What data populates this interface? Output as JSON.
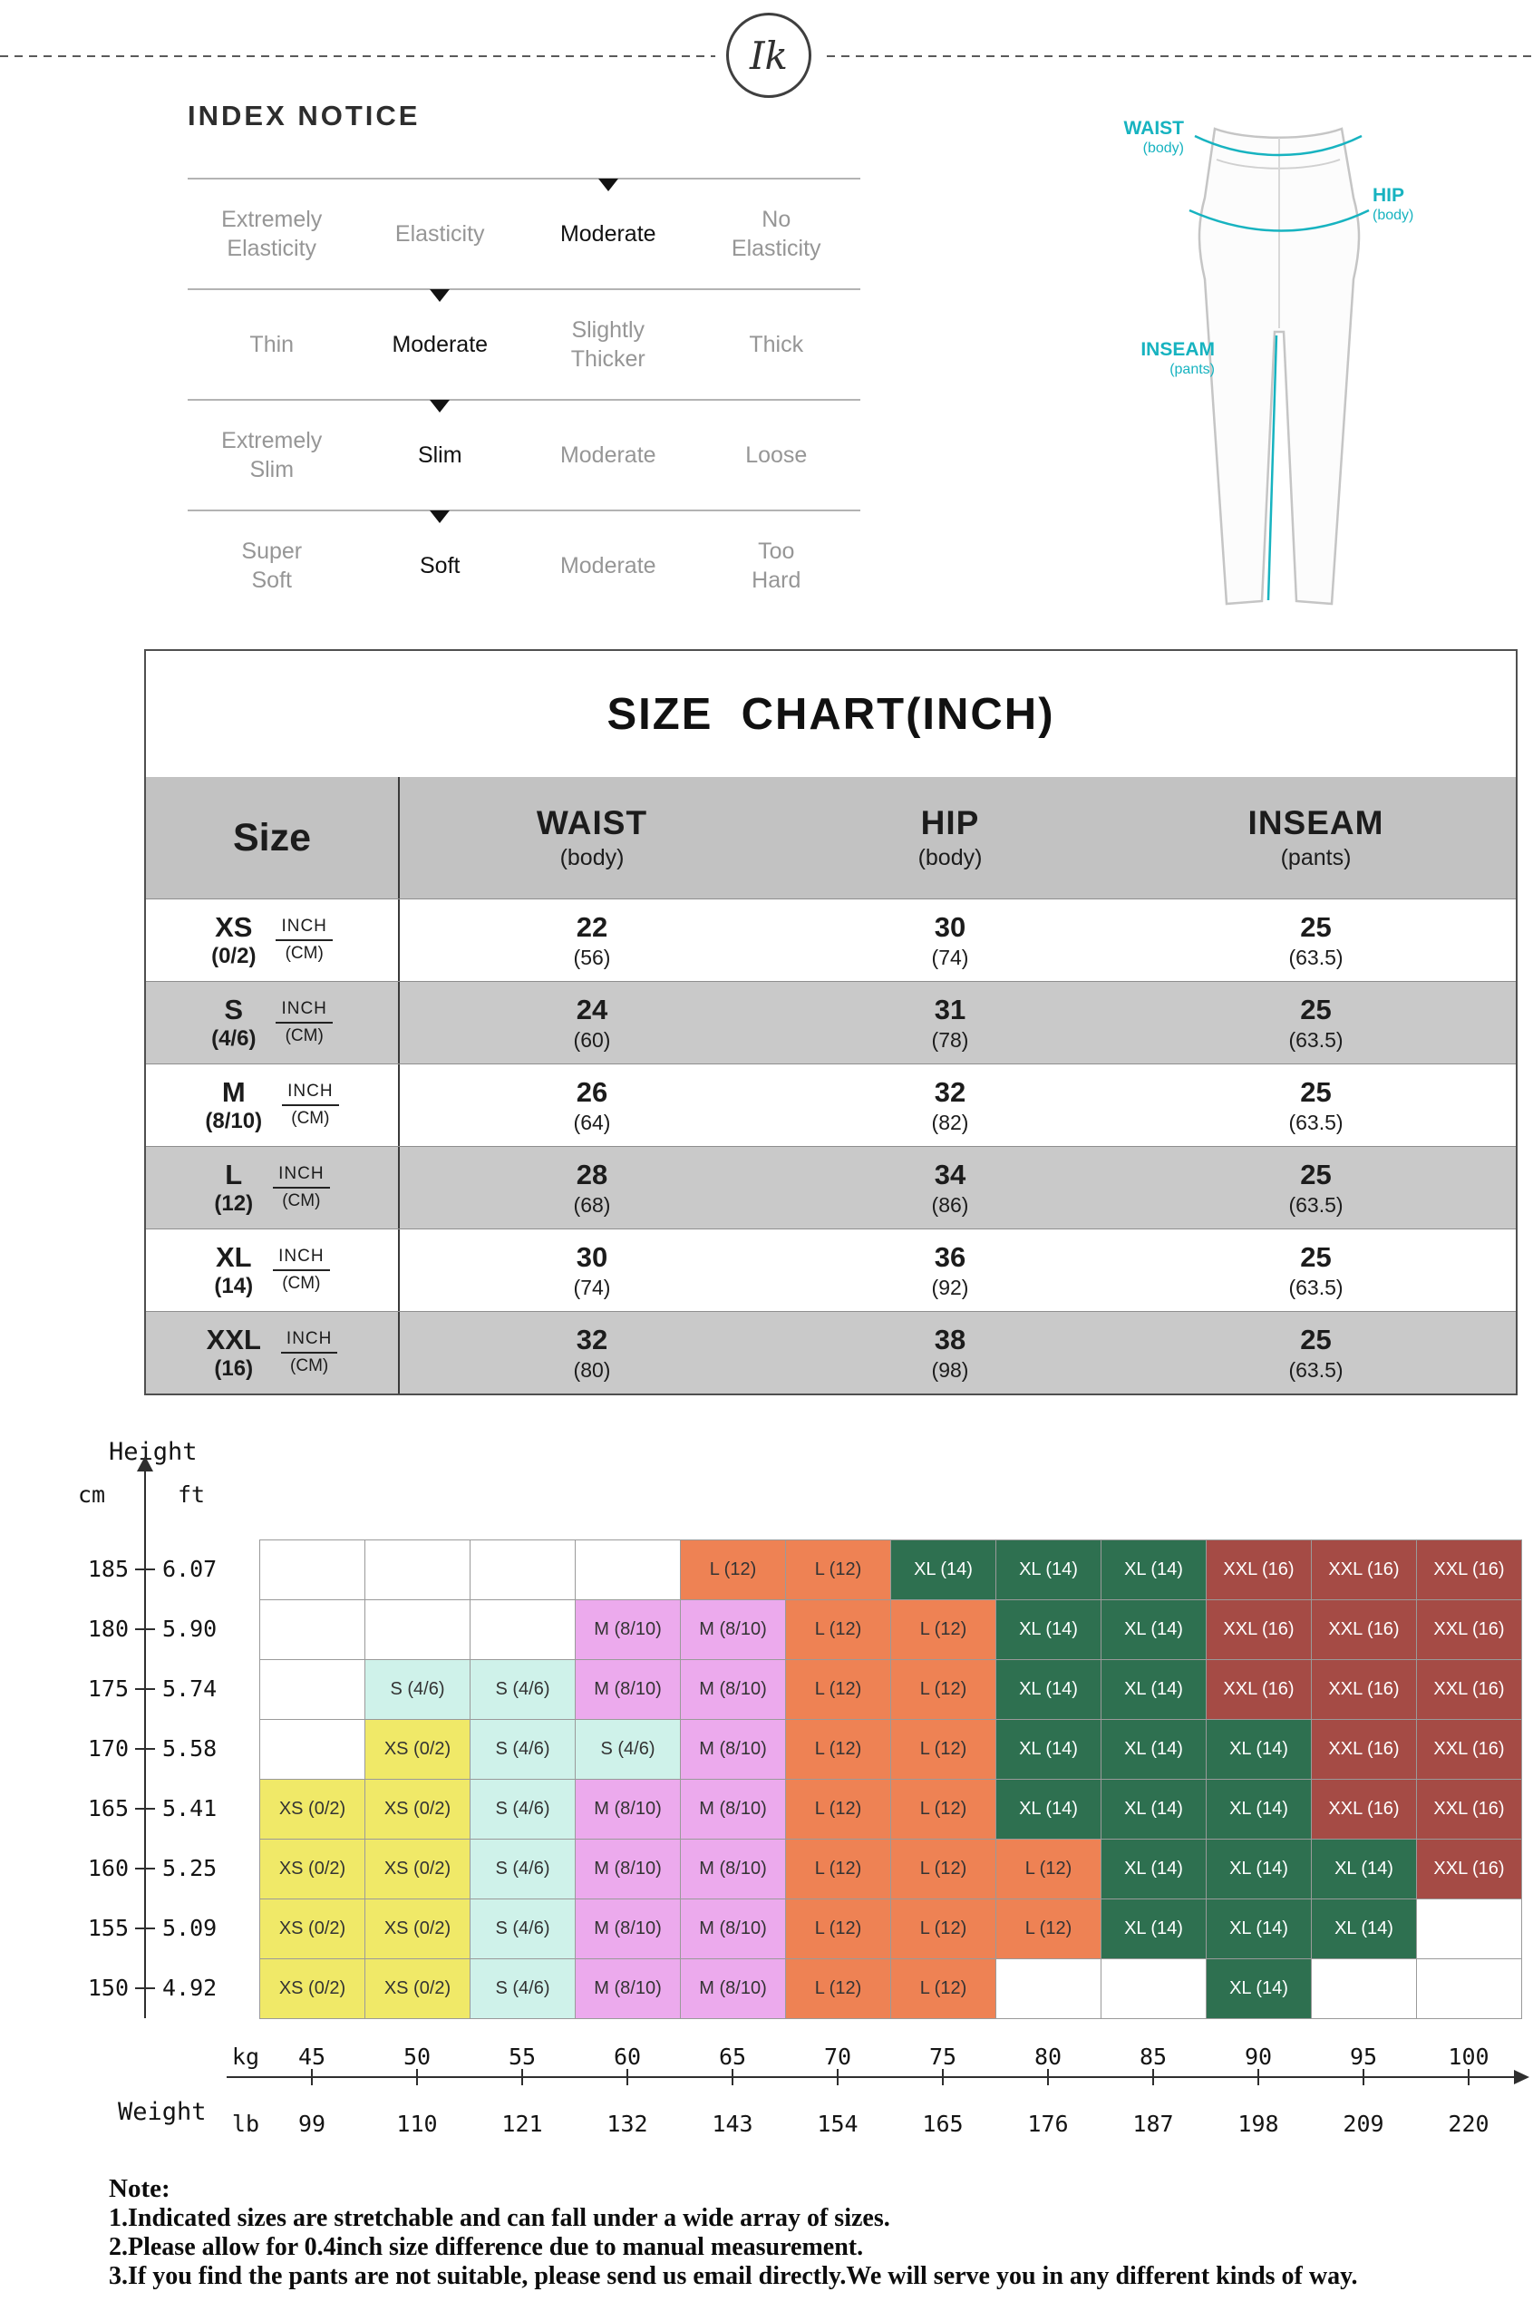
{
  "logo": {
    "monogram": "Ik"
  },
  "index_notice": {
    "title": "INDEX NOTICE",
    "rows": [
      {
        "name": "elasticity",
        "selected": 2,
        "options": [
          [
            "Extremely",
            "Elasticity"
          ],
          [
            "Elasticity"
          ],
          [
            "Moderate"
          ],
          [
            "No",
            "Elasticity"
          ]
        ]
      },
      {
        "name": "thickness",
        "selected": 1,
        "options": [
          [
            "Thin"
          ],
          [
            "Moderate"
          ],
          [
            "Slightly",
            "Thicker"
          ],
          [
            "Thick"
          ]
        ]
      },
      {
        "name": "fit",
        "selected": 1,
        "options": [
          [
            "Extremely",
            "Slim"
          ],
          [
            "Slim"
          ],
          [
            "Moderate"
          ],
          [
            "Loose"
          ]
        ]
      },
      {
        "name": "softness",
        "selected": 1,
        "options": [
          [
            "Super",
            "Soft"
          ],
          [
            "Soft"
          ],
          [
            "Moderate"
          ],
          [
            "Too",
            "Hard"
          ]
        ]
      }
    ]
  },
  "diagram": {
    "accent_color": "#17b3c0",
    "waist": {
      "title": "WAIST",
      "sub": "(body)"
    },
    "hip": {
      "title": "HIP",
      "sub": "(body)"
    },
    "inseam": {
      "title": "INSEAM",
      "sub": "(pants)"
    }
  },
  "size_chart": {
    "title": "SIZE  CHART(INCH)",
    "header": {
      "size": "Size",
      "columns": [
        {
          "title": "WAIST",
          "sub": "(body)"
        },
        {
          "title": "HIP",
          "sub": "(body)"
        },
        {
          "title": "INSEAM",
          "sub": "(pants)"
        }
      ]
    },
    "unit_top": "INCH",
    "unit_bottom": "(CM)",
    "rows": [
      {
        "size": "XS",
        "size_sub": "(0/2)",
        "values": [
          [
            "22",
            "(56)"
          ],
          [
            "30",
            "(74)"
          ],
          [
            "25",
            "(63.5)"
          ]
        ]
      },
      {
        "size": "S",
        "size_sub": "(4/6)",
        "values": [
          [
            "24",
            "(60)"
          ],
          [
            "31",
            "(78)"
          ],
          [
            "25",
            "(63.5)"
          ]
        ]
      },
      {
        "size": "M",
        "size_sub": "(8/10)",
        "values": [
          [
            "26",
            "(64)"
          ],
          [
            "32",
            "(82)"
          ],
          [
            "25",
            "(63.5)"
          ]
        ]
      },
      {
        "size": "L",
        "size_sub": "(12)",
        "values": [
          [
            "28",
            "(68)"
          ],
          [
            "34",
            "(86)"
          ],
          [
            "25",
            "(63.5)"
          ]
        ]
      },
      {
        "size": "XL",
        "size_sub": "(14)",
        "values": [
          [
            "30",
            "(74)"
          ],
          [
            "36",
            "(92)"
          ],
          [
            "25",
            "(63.5)"
          ]
        ]
      },
      {
        "size": "XXL",
        "size_sub": "(16)",
        "values": [
          [
            "32",
            "(80)"
          ],
          [
            "38",
            "(98)"
          ],
          [
            "25",
            "(63.5)"
          ]
        ]
      }
    ]
  },
  "height_weight": {
    "height_label": "Height",
    "weight_label": "Weight",
    "cm_label": "cm",
    "ft_label": "ft",
    "kg_label": "kg",
    "lb_label": "lb",
    "legend": {
      "XS": {
        "label": "XS (0/2)",
        "bg": "#f0e968",
        "fg": "#333333"
      },
      "S": {
        "label": "S (4/6)",
        "bg": "#cff2ea",
        "fg": "#333333"
      },
      "M": {
        "label": "M (8/10)",
        "bg": "#ecaaed",
        "fg": "#333333"
      },
      "L": {
        "label": "L (12)",
        "bg": "#ee8254",
        "fg": "#333333"
      },
      "XL": {
        "label": "XL (14)",
        "bg": "#2e7050",
        "fg": "#ffffff"
      },
      "XXL": {
        "label": "XXL (16)",
        "bg": "#a54b45",
        "fg": "#ffffff"
      }
    },
    "rows": [
      {
        "cm": "185",
        "ft": "6.07",
        "cells": [
          "",
          "",
          "",
          "",
          "L",
          "L",
          "XL",
          "XL",
          "XL",
          "XXL",
          "XXL",
          "XXL"
        ]
      },
      {
        "cm": "180",
        "ft": "5.90",
        "cells": [
          "",
          "",
          "",
          "M",
          "M",
          "L",
          "L",
          "XL",
          "XL",
          "XXL",
          "XXL",
          "XXL"
        ]
      },
      {
        "cm": "175",
        "ft": "5.74",
        "cells": [
          "",
          "S",
          "S",
          "M",
          "M",
          "L",
          "L",
          "XL",
          "XL",
          "XXL",
          "XXL",
          "XXL"
        ]
      },
      {
        "cm": "170",
        "ft": "5.58",
        "cells": [
          "",
          "XS",
          "S",
          "S",
          "M",
          "L",
          "L",
          "XL",
          "XL",
          "XL",
          "XXL",
          "XXL"
        ]
      },
      {
        "cm": "165",
        "ft": "5.41",
        "cells": [
          "XS",
          "XS",
          "S",
          "M",
          "M",
          "L",
          "L",
          "XL",
          "XL",
          "XL",
          "XXL",
          "XXL"
        ]
      },
      {
        "cm": "160",
        "ft": "5.25",
        "cells": [
          "XS",
          "XS",
          "S",
          "M",
          "M",
          "L",
          "L",
          "L",
          "XL",
          "XL",
          "XL",
          "XXL"
        ]
      },
      {
        "cm": "155",
        "ft": "5.09",
        "cells": [
          "XS",
          "XS",
          "S",
          "M",
          "M",
          "L",
          "L",
          "L",
          "XL",
          "XL",
          "XL",
          ""
        ]
      },
      {
        "cm": "150",
        "ft": "4.92",
        "cells": [
          "XS",
          "XS",
          "S",
          "M",
          "M",
          "L",
          "L",
          "",
          "",
          "XL",
          "",
          ""
        ]
      }
    ],
    "kg_values": [
      "45",
      "50",
      "55",
      "60",
      "65",
      "70",
      "75",
      "80",
      "85",
      "90",
      "95",
      "100"
    ],
    "lb_values": [
      "99",
      "110",
      "121",
      "132",
      "143",
      "154",
      "165",
      "176",
      "187",
      "198",
      "209",
      "220"
    ]
  },
  "note": {
    "title": "Note:",
    "items": [
      "1.Indicated sizes are stretchable and can fall under a wide array of sizes.",
      "2.Please allow for 0.4inch size difference due to manual measurement.",
      "3.If you find the pants are not suitable, please send us email directly.We will serve you in any different kinds of way."
    ]
  },
  "chart_data": [
    {
      "type": "table",
      "title": "SIZE CHART(INCH)",
      "columns": [
        "Size",
        "WAIST (body)",
        "HIP (body)",
        "INSEAM (pants)"
      ],
      "units": "inch (cm)",
      "rows": [
        [
          "XS (0/2)",
          "22 (56)",
          "30 (74)",
          "25 (63.5)"
        ],
        [
          "S (4/6)",
          "24 (60)",
          "31 (78)",
          "25 (63.5)"
        ],
        [
          "M (8/10)",
          "26 (64)",
          "32 (82)",
          "25 (63.5)"
        ],
        [
          "L (12)",
          "28 (68)",
          "34 (86)",
          "25 (63.5)"
        ],
        [
          "XL (14)",
          "30 (74)",
          "36 (92)",
          "25 (63.5)"
        ],
        [
          "XXL (16)",
          "32 (80)",
          "38 (98)",
          "25 (63.5)"
        ]
      ]
    },
    {
      "type": "heatmap",
      "title": "Recommended size by height and weight",
      "xlabel": "Weight",
      "ylabel": "Height",
      "x_kg": [
        45,
        50,
        55,
        60,
        65,
        70,
        75,
        80,
        85,
        90,
        95,
        100
      ],
      "x_lb": [
        99,
        110,
        121,
        132,
        143,
        154,
        165,
        176,
        187,
        198,
        209,
        220
      ],
      "y_cm": [
        185,
        180,
        175,
        170,
        165,
        160,
        155,
        150
      ],
      "y_ft": [
        6.07,
        5.9,
        5.74,
        5.58,
        5.41,
        5.25,
        5.09,
        4.92
      ],
      "size_labels": {
        "XS": "XS (0/2)",
        "S": "S (4/6)",
        "M": "M (8/10)",
        "L": "L (12)",
        "XL": "XL (14)",
        "XXL": "XXL (16)"
      },
      "values": [
        [
          "",
          "",
          "",
          "",
          "L",
          "L",
          "XL",
          "XL",
          "XL",
          "XXL",
          "XXL",
          "XXL"
        ],
        [
          "",
          "",
          "",
          "M",
          "M",
          "L",
          "L",
          "XL",
          "XL",
          "XXL",
          "XXL",
          "XXL"
        ],
        [
          "",
          "S",
          "S",
          "M",
          "M",
          "L",
          "L",
          "XL",
          "XL",
          "XXL",
          "XXL",
          "XXL"
        ],
        [
          "",
          "XS",
          "S",
          "S",
          "M",
          "L",
          "L",
          "XL",
          "XL",
          "XL",
          "XXL",
          "XXL"
        ],
        [
          "XS",
          "XS",
          "S",
          "M",
          "M",
          "L",
          "L",
          "XL",
          "XL",
          "XL",
          "XXL",
          "XXL"
        ],
        [
          "XS",
          "XS",
          "S",
          "M",
          "M",
          "L",
          "L",
          "L",
          "XL",
          "XL",
          "XL",
          "XXL"
        ],
        [
          "XS",
          "XS",
          "S",
          "M",
          "M",
          "L",
          "L",
          "L",
          "XL",
          "XL",
          "XL",
          ""
        ],
        [
          "XS",
          "XS",
          "S",
          "M",
          "M",
          "L",
          "L",
          "",
          "",
          "XL",
          "",
          ""
        ]
      ]
    }
  ]
}
